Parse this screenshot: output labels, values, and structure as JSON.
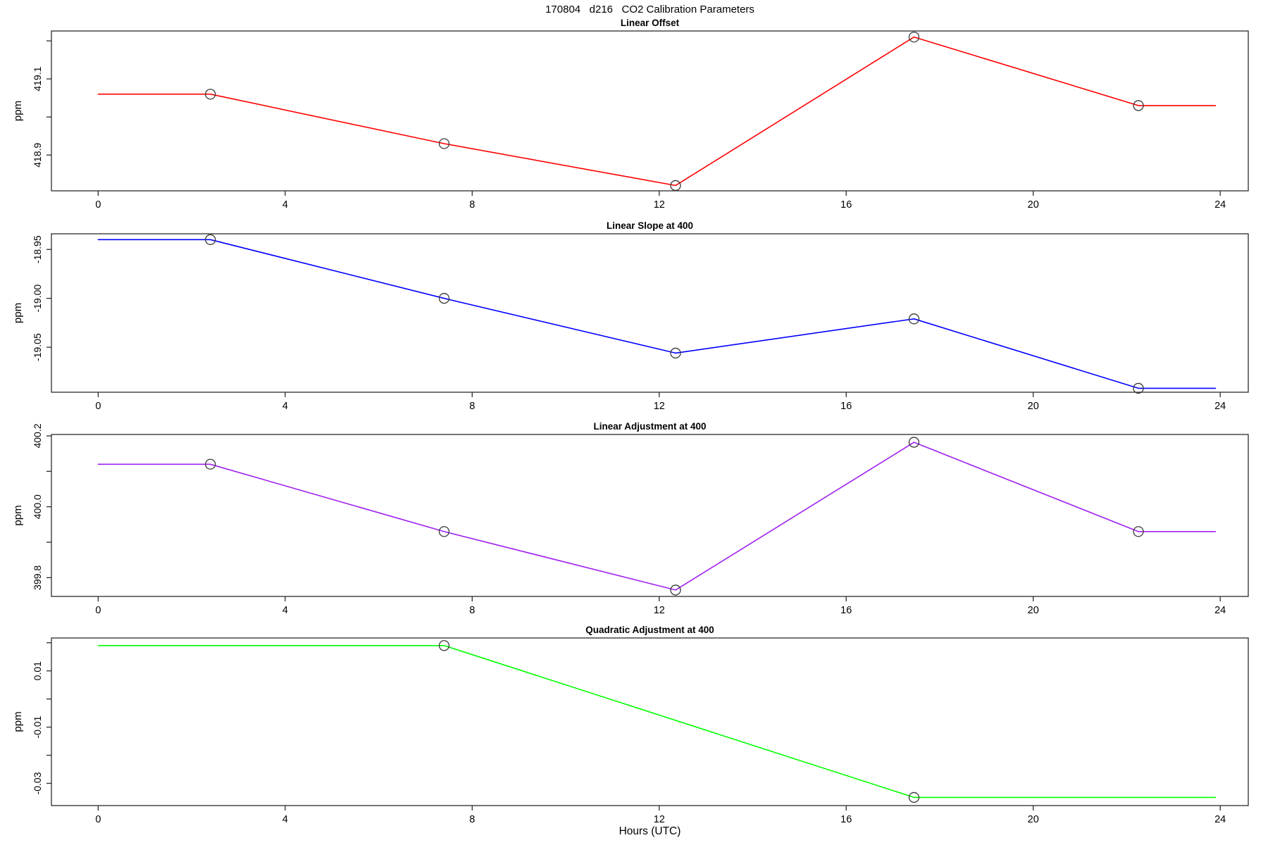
{
  "title": "170804   d216   CO2 Calibration Parameters",
  "xlabel": "Hours (UTC)",
  "chart_data": [
    {
      "type": "line",
      "title": "Linear Offset",
      "ylabel": "ppm",
      "color": "#FF0000",
      "x": [
        0,
        2.4,
        7.4,
        12.35,
        17.45,
        22.25,
        23.9
      ],
      "y": [
        419.06,
        419.06,
        418.93,
        418.82,
        419.21,
        419.03,
        419.03
      ],
      "markers": {
        "x": [
          2.4,
          7.4,
          12.35,
          17.45,
          22.25
        ],
        "y": [
          419.06,
          418.93,
          418.82,
          419.21,
          419.03
        ]
      },
      "xlim": [
        -1,
        24.6
      ],
      "xticks": [
        0,
        4,
        8,
        12,
        16,
        20,
        24
      ],
      "xtick_labels": [
        "0",
        "4",
        "8",
        "12",
        "16",
        "20",
        "24"
      ],
      "ylim": [
        418.806,
        419.226
      ],
      "yticks": [
        418.9,
        419.0,
        419.1,
        419.2
      ],
      "ytick_labels": [
        "418.9",
        "",
        "419.1",
        ""
      ]
    },
    {
      "type": "line",
      "title": "Linear Slope at 400",
      "ylabel": "ppm",
      "color": "#0000FF",
      "x": [
        0,
        2.4,
        7.4,
        12.35,
        17.45,
        22.25,
        23.9
      ],
      "y": [
        -18.94,
        -18.94,
        -19.0,
        -19.056,
        -19.021,
        -19.092,
        -19.092
      ],
      "markers": {
        "x": [
          2.4,
          7.4,
          12.35,
          17.45,
          22.25
        ],
        "y": [
          -18.94,
          -19.0,
          -19.056,
          -19.021,
          -19.092
        ]
      },
      "xlim": [
        -1,
        24.6
      ],
      "xticks": [
        0,
        4,
        8,
        12,
        16,
        20,
        24
      ],
      "xtick_labels": [
        "0",
        "4",
        "8",
        "12",
        "16",
        "20",
        "24"
      ],
      "ylim": [
        -19.096,
        -18.934
      ],
      "yticks": [
        -19.05,
        -19.0,
        -18.95
      ],
      "ytick_labels": [
        "-19.05",
        "-19.00",
        "-18.95"
      ]
    },
    {
      "type": "line",
      "title": "Linear Adjustment at 400",
      "ylabel": "ppm",
      "color": "#A020F0",
      "x": [
        0,
        2.4,
        7.4,
        12.35,
        17.45,
        22.25,
        23.9
      ],
      "y": [
        400.12,
        400.12,
        399.93,
        399.765,
        400.182,
        399.93,
        399.93
      ],
      "markers": {
        "x": [
          2.4,
          7.4,
          12.35,
          17.45,
          22.25
        ],
        "y": [
          400.12,
          399.93,
          399.765,
          400.182,
          399.93
        ]
      },
      "xlim": [
        -1,
        24.6
      ],
      "xticks": [
        0,
        4,
        8,
        12,
        16,
        20,
        24
      ],
      "xtick_labels": [
        "0",
        "4",
        "8",
        "12",
        "16",
        "20",
        "24"
      ],
      "ylim": [
        399.747,
        400.204
      ],
      "yticks": [
        399.8,
        399.9,
        400.0,
        400.1,
        400.2
      ],
      "ytick_labels": [
        "399.8",
        "",
        "400.0",
        "",
        "400.2"
      ]
    },
    {
      "type": "line",
      "title": "Quadratic Adjustment at 400",
      "ylabel": "ppm",
      "color": "#00FF00",
      "x": [
        0,
        7.4,
        17.45,
        23.9
      ],
      "y": [
        0.019,
        0.019,
        -0.035,
        -0.035
      ],
      "markers": {
        "x": [
          7.4,
          17.45
        ],
        "y": [
          0.019,
          -0.035
        ]
      },
      "xlim": [
        -1,
        24.6
      ],
      "xticks": [
        0,
        4,
        8,
        12,
        16,
        20,
        24
      ],
      "xtick_labels": [
        "0",
        "4",
        "8",
        "12",
        "16",
        "20",
        "24"
      ],
      "ylim": [
        -0.0379,
        0.0217
      ],
      "yticks": [
        -0.03,
        -0.02,
        -0.01,
        0.0,
        0.01,
        0.02
      ],
      "ytick_labels": [
        "-0.03",
        "",
        "-0.01",
        "",
        "0.01",
        ""
      ]
    }
  ]
}
